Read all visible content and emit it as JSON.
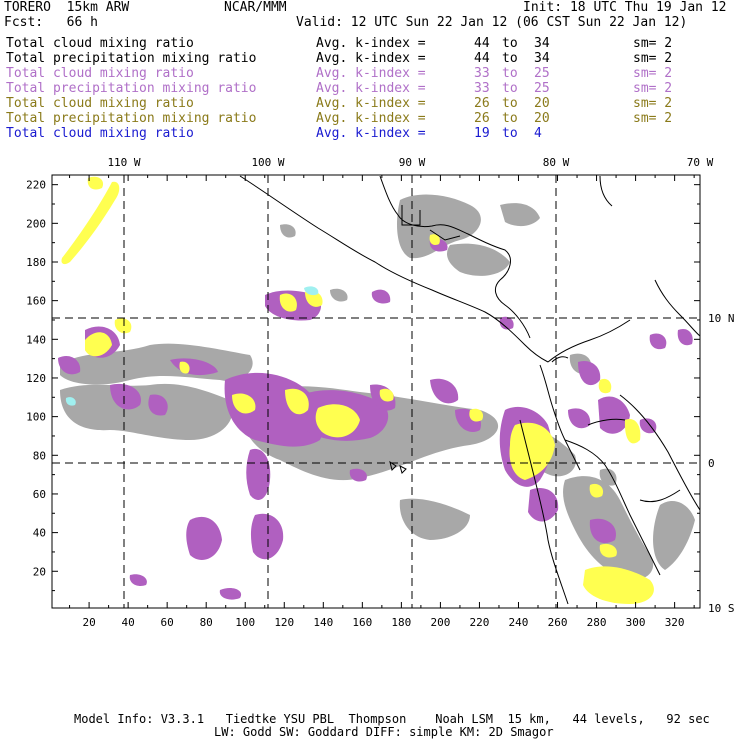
{
  "header": {
    "model": "TORERO  15km ARW",
    "org": "NCAR/MMM",
    "init": "Init: 18 UTC Thu 19 Jan 12",
    "fcst": "Fcst:   66 h",
    "valid": "Valid: 12 UTC Sun 22 Jan 12 (06 CST Sun 22 Jan 12)"
  },
  "legend": [
    {
      "field": "Total cloud mixing ratio",
      "range_label": "Avg. k-index =",
      "from": "44",
      "to_word": "to",
      "to": "34",
      "sm": "sm= 2",
      "color": "#000000"
    },
    {
      "field": "Total precipitation mixing ratio",
      "range_label": "Avg. k-index =",
      "from": "44",
      "to_word": "to",
      "to": "34",
      "sm": "sm= 2",
      "color": "#000000"
    },
    {
      "field": "Total cloud mixing ratio",
      "range_label": "Avg. k-index =",
      "from": "33",
      "to_word": "to",
      "to": "25",
      "sm": "sm= 2",
      "color": "#b070c8"
    },
    {
      "field": "Total precipitation mixing ratio",
      "range_label": "Avg. k-index =",
      "from": "33",
      "to_word": "to",
      "to": "25",
      "sm": "sm= 2",
      "color": "#b070c8"
    },
    {
      "field": "Total cloud mixing ratio",
      "range_label": "Avg. k-index =",
      "from": "26",
      "to_word": "to",
      "to": "20",
      "sm": "sm= 2",
      "color": "#8a7a1a"
    },
    {
      "field": "Total precipitation mixing ratio",
      "range_label": "Avg. k-index =",
      "from": "26",
      "to_word": "to",
      "to": "20",
      "sm": "sm= 2",
      "color": "#8a7a1a"
    },
    {
      "field": "Total cloud mixing ratio",
      "range_label": "Avg. k-index =",
      "from": "19",
      "to_word": "to",
      "to": "4",
      "sm": "",
      "color": "#1a1ad0"
    }
  ],
  "map": {
    "longitude_labels": [
      "110 W",
      "100 W",
      "90 W",
      "80 W",
      "70 W"
    ],
    "latitude_labels": [
      "10 N",
      "0",
      "10 S"
    ],
    "grid_x_ticks": [
      20,
      40,
      60,
      80,
      100,
      120,
      140,
      160,
      180,
      200,
      220,
      240,
      260,
      280,
      300,
      320
    ],
    "grid_y_ticks": [
      20,
      40,
      60,
      80,
      100,
      120,
      140,
      160,
      180,
      200,
      220
    ],
    "grid_x_range": [
      1,
      333
    ],
    "grid_y_range": [
      1,
      225
    ],
    "colors": {
      "gray_cloud": "#a8a8a8",
      "violet": "#b060c0",
      "yellow": "#ffff50",
      "cyan": "#a0f0f0"
    }
  },
  "footer": {
    "line1": "Model Info: V3.3.1   Tiedtke YSU PBL  Thompson    Noah LSM  15 km,   44 levels,   92 sec",
    "line2": "LW: Godd SW: Goddard DIFF: simple KM: 2D Smagor"
  }
}
